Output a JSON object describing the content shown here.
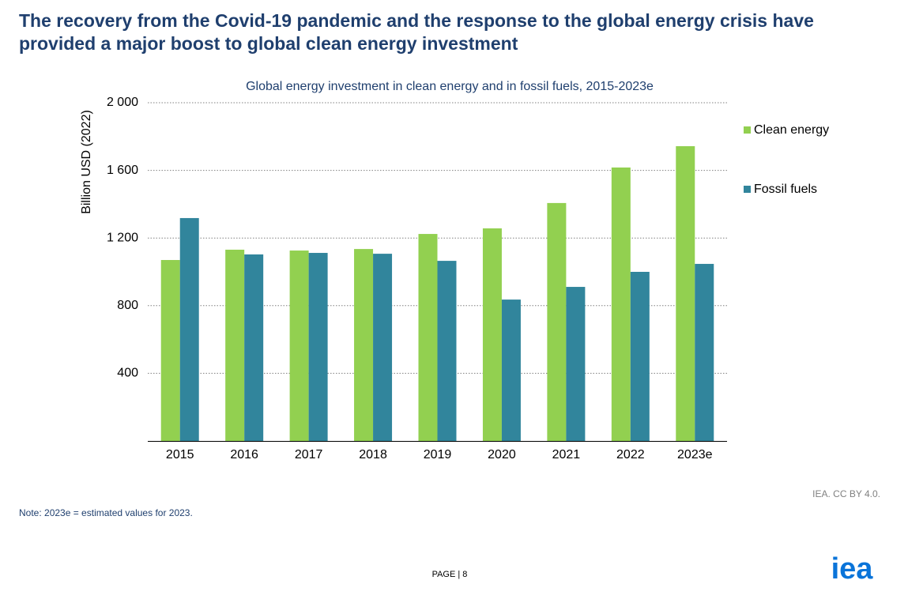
{
  "header": {
    "title": [
      "The recovery from the Covid-19 pandemic and the response to the global energy crisis have",
      "provided a major boost to global clean energy investment"
    ]
  },
  "chart_data": {
    "type": "bar",
    "title": "Global energy investment in clean energy and in fossil fuels, 2015-2023e",
    "y_label": "Billion USD (2022)",
    "categories": [
      "2015",
      "2016",
      "2017",
      "2018",
      "2019",
      "2020",
      "2021",
      "2022",
      "2023e"
    ],
    "series": [
      {
        "name": "Clean energy",
        "color": "#92d050",
        "values": [
          1070,
          1131,
          1126,
          1135,
          1224,
          1257,
          1407,
          1617,
          1743
        ]
      },
      {
        "name": "Fossil fuels",
        "color": "#31859c",
        "values": [
          1318,
          1103,
          1112,
          1107,
          1065,
          836,
          911,
          1000,
          1047
        ]
      }
    ],
    "ylim": [
      0,
      2000
    ],
    "yticks": [
      400,
      800,
      {
        "value": 1200,
        "label": "1 200"
      },
      {
        "value": 1600,
        "label": "1 600"
      },
      {
        "value": 2000,
        "label": "2 000"
      }
    ],
    "grid": true,
    "legend": "right"
  },
  "note": "Note:  2023e = estimated values for 2023.",
  "credit": "IEA. CC BY 4.0.",
  "page": "PAGE | 8",
  "logo": "iea"
}
